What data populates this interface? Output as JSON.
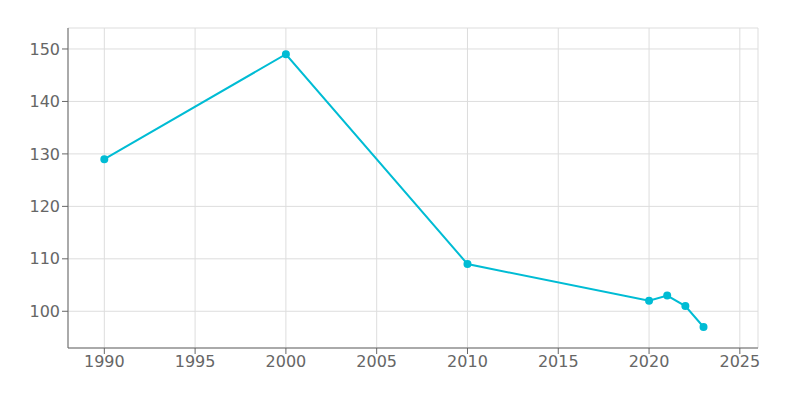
{
  "chart_data": {
    "type": "line",
    "x": [
      1990,
      2000,
      2010,
      2020,
      2021,
      2022,
      2023
    ],
    "values": [
      129,
      149,
      109,
      102,
      103,
      101,
      97
    ],
    "color": "#00BCD4",
    "xlim": [
      1988,
      2026
    ],
    "xticks": [
      1990,
      1995,
      2000,
      2005,
      2010,
      2015,
      2020,
      2025
    ],
    "ylim": [
      93,
      154
    ],
    "yticks": [
      100,
      110,
      120,
      130,
      140,
      150
    ],
    "grid": true,
    "marker": "circle"
  }
}
